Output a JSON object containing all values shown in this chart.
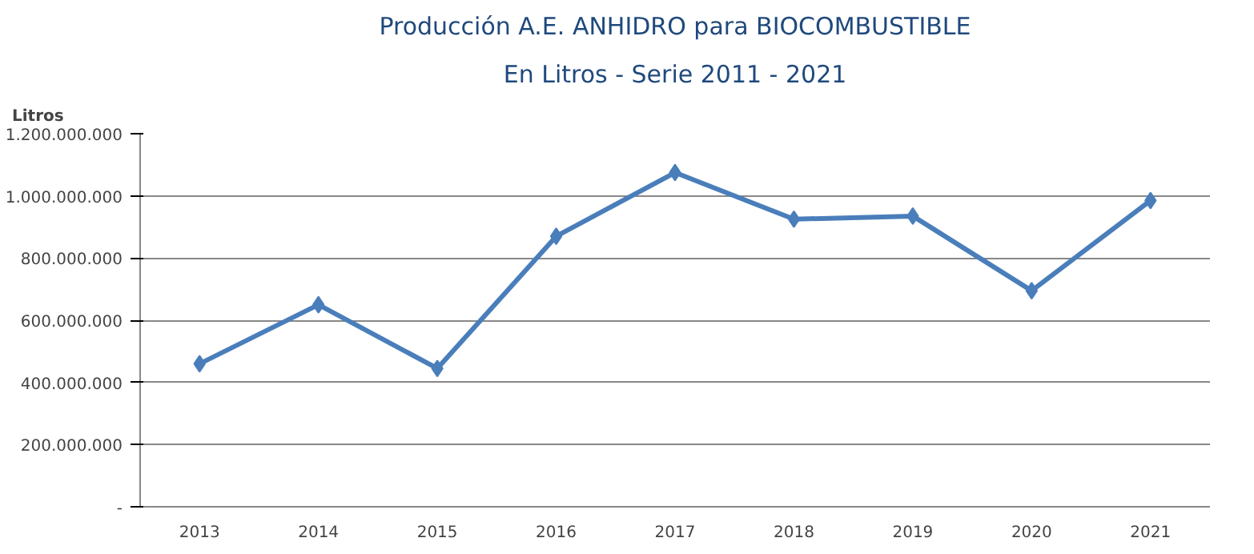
{
  "chart_data": {
    "type": "line",
    "title": "Producción A.E. ANHIDRO para BIOCOMBUSTIBLE",
    "subtitle": "En Litros - Serie 2011 - 2021",
    "ylabel": "Litros",
    "categories": [
      "2013",
      "2014",
      "2015",
      "2016",
      "2017",
      "2018",
      "2019",
      "2020",
      "2021"
    ],
    "series": [
      {
        "color": "#4a7ebb",
        "values": [
          460000000,
          650000000,
          445000000,
          870000000,
          1075000000,
          925000000,
          935000000,
          695000000,
          985000000
        ]
      }
    ],
    "ylim": [
      0,
      1200000000
    ],
    "yticks": [
      {
        "value": 0,
        "label": "-"
      },
      {
        "value": 200000000,
        "label": "200.000.000"
      },
      {
        "value": 400000000,
        "label": "400.000.000"
      },
      {
        "value": 600000000,
        "label": "600.000.000"
      },
      {
        "value": 800000000,
        "label": "800.000.000"
      },
      {
        "value": 1000000000,
        "label": "1.000.000.000"
      },
      {
        "value": 1200000000,
        "label": "1.200.000.000"
      }
    ],
    "grid": "y",
    "marker": "diamond",
    "line_style": "solid"
  }
}
